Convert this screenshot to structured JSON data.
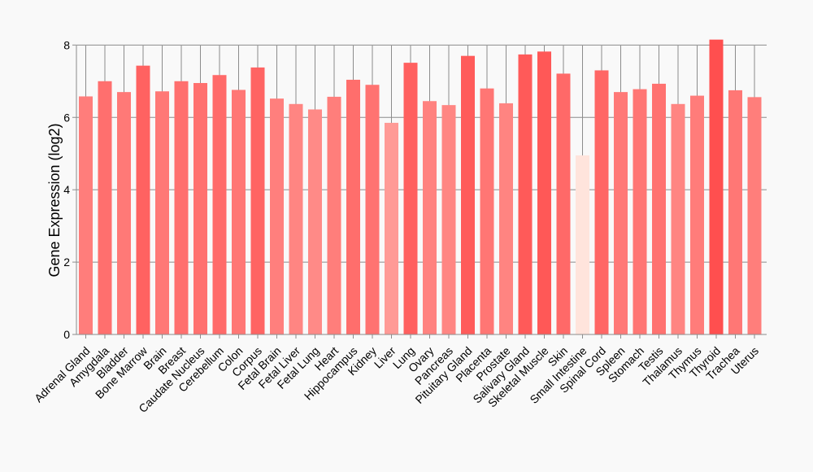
{
  "chart_data": {
    "type": "bar",
    "ylabel": "Gene Expression (log2)",
    "ylim": [
      0,
      8.3
    ],
    "yticks": [
      0,
      2,
      4,
      6,
      8
    ],
    "grid": true,
    "categories": [
      "Adrenal Gland",
      "Amygdala",
      "Bladder",
      "Bone Marrow",
      "Brain",
      "Breast",
      "Caudate Nucleus",
      "Cerebellum",
      "Colon",
      "Corpus",
      "Fetal Brain",
      "Fetal Liver",
      "Fetal Lung",
      "Heart",
      "Hippocampus",
      "Kidney",
      "Liver",
      "Lung",
      "Ovary",
      "Pancreas",
      "Pituitary Gland",
      "Placenta",
      "Prostate",
      "Salivary Gland",
      "Skeletal Muscle",
      "Skin",
      "Small Intestine",
      "Spinal Cord",
      "Spleen",
      "Stomach",
      "Testis",
      "Thalamus",
      "Thymus",
      "Thyroid",
      "Trachea",
      "Uterus"
    ],
    "values": [
      6.58,
      7.0,
      6.7,
      7.43,
      6.72,
      7.0,
      6.95,
      7.17,
      6.76,
      7.38,
      6.52,
      6.37,
      6.22,
      6.57,
      7.04,
      6.9,
      5.85,
      7.51,
      6.45,
      6.34,
      7.7,
      6.8,
      6.39,
      7.74,
      7.82,
      7.21,
      4.95,
      7.3,
      6.7,
      6.78,
      6.93,
      6.37,
      6.6,
      8.15,
      6.75,
      6.56
    ],
    "color_scale": {
      "low": "#ffe4dc",
      "high": "#ff4f4f"
    }
  }
}
